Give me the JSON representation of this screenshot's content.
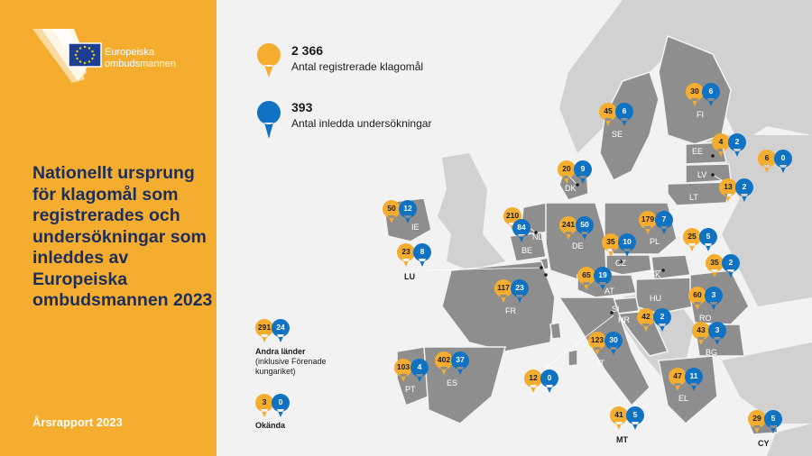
{
  "sidebar": {
    "logo_line1": "Europeiska",
    "logo_line2": "ombudsmannen",
    "title": "Nationellt ursprung för klagomål som registrerades och undersökningar som inleddes av Europeiska ombudsmannen 2023",
    "report": "Årsrapport 2023",
    "colors": {
      "background": "#f5ad2f",
      "title": "#1c2f5c"
    }
  },
  "legend": {
    "complaints": {
      "value": "2 366",
      "label": "Antal registrerade klagomål",
      "color": "#f5ad2f"
    },
    "inquiries": {
      "value": "393",
      "label": "Antal inledda undersökningar",
      "color": "#0f72c2"
    }
  },
  "other": {
    "complaints": "291",
    "inquiries": "24",
    "label": "Andra länder",
    "note": "(inklusive Förenade kungariket)"
  },
  "unknown": {
    "complaints": "3",
    "inquiries": "0",
    "label": "Okända"
  },
  "countries": [
    {
      "code": "FI",
      "complaints": "30",
      "inquiries": "6"
    },
    {
      "code": "SE",
      "complaints": "45",
      "inquiries": "6"
    },
    {
      "code": "EE",
      "complaints": "4",
      "inquiries": "2"
    },
    {
      "code": "LV",
      "complaints": "6",
      "inquiries": "0"
    },
    {
      "code": "LT",
      "complaints": "13",
      "inquiries": "2"
    },
    {
      "code": "DK",
      "complaints": "20",
      "inquiries": "9"
    },
    {
      "code": "IE",
      "complaints": "50",
      "inquiries": "12"
    },
    {
      "code": "NL",
      "complaints": "210",
      "inquiries": ""
    },
    {
      "code": "BE",
      "complaints": "",
      "inquiries": "84"
    },
    {
      "code": "DE",
      "complaints": "241",
      "inquiries": "50"
    },
    {
      "code": "PL",
      "complaints": "179",
      "inquiries": "7"
    },
    {
      "code": "LU",
      "complaints": "23",
      "inquiries": "8"
    },
    {
      "code": "CZ",
      "complaints": "35",
      "inquiries": "10"
    },
    {
      "code": "SK",
      "complaints": "25",
      "inquiries": "5"
    },
    {
      "code": "AT",
      "complaints": "65",
      "inquiries": "19"
    },
    {
      "code": "HU",
      "complaints": "35",
      "inquiries": "2"
    },
    {
      "code": "FR",
      "complaints": "117",
      "inquiries": "23"
    },
    {
      "code": "RO",
      "complaints": "60",
      "inquiries": "3"
    },
    {
      "code": "SI",
      "complaints": "",
      "inquiries": ""
    },
    {
      "code": "HR",
      "complaints": "42",
      "inquiries": "2"
    },
    {
      "code": "BG",
      "complaints": "43",
      "inquiries": "3"
    },
    {
      "code": "IT",
      "complaints": "123",
      "inquiries": "30"
    },
    {
      "code": "PT",
      "complaints": "103",
      "inquiries": "4"
    },
    {
      "code": "ES",
      "complaints": "402",
      "inquiries": "37"
    },
    {
      "code": "EL",
      "complaints": "47",
      "inquiries": "11"
    },
    {
      "code": "MT",
      "complaints": "41",
      "inquiries": "5"
    },
    {
      "code": "CY",
      "complaints": "29",
      "inquiries": "5"
    },
    {
      "code": "SI-note",
      "complaints": "12",
      "inquiries": "0"
    },
    {
      "code": "CZ-note",
      "complaints": "",
      "inquiries": ""
    }
  ]
}
